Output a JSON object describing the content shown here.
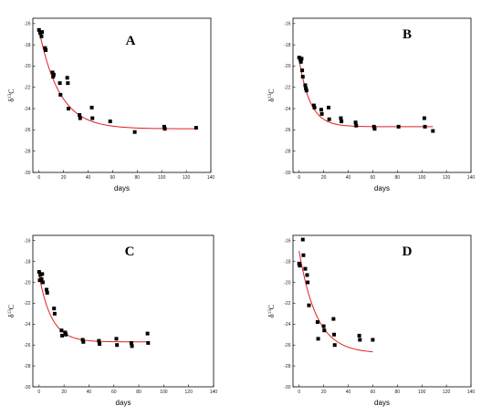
{
  "chart_data": [
    {
      "type": "scatter",
      "panel_label": "A",
      "xlabel": "days",
      "ylabel": {
        "prefix": "δ",
        "sup": "13",
        "suffix": "C"
      },
      "xlim": [
        -5,
        140
      ],
      "ylim": [
        -30,
        -15.5
      ],
      "xticks": [
        0,
        20,
        40,
        60,
        80,
        100,
        120,
        140
      ],
      "yticks": [
        -30,
        -28,
        -26,
        -24,
        -22,
        -20,
        -18,
        -16
      ],
      "points": [
        {
          "x": 0,
          "y": -16.6
        },
        {
          "x": 1,
          "y": -16.9
        },
        {
          "x": 2,
          "y": -17.2
        },
        {
          "x": 2.5,
          "y": -16.8
        },
        {
          "x": 5,
          "y": -18.3
        },
        {
          "x": 5.5,
          "y": -18.5
        },
        {
          "x": 11,
          "y": -20.6
        },
        {
          "x": 11.5,
          "y": -21.0
        },
        {
          "x": 12,
          "y": -20.8
        },
        {
          "x": 17,
          "y": -21.6
        },
        {
          "x": 17.5,
          "y": -22.7
        },
        {
          "x": 23,
          "y": -21.1
        },
        {
          "x": 23.5,
          "y": -21.6
        },
        {
          "x": 24,
          "y": -24.0
        },
        {
          "x": 33,
          "y": -24.6
        },
        {
          "x": 33.5,
          "y": -24.9
        },
        {
          "x": 43,
          "y": -23.9
        },
        {
          "x": 43.5,
          "y": -24.9
        },
        {
          "x": 58,
          "y": -25.2
        },
        {
          "x": 78,
          "y": -26.2
        },
        {
          "x": 102,
          "y": -25.7
        },
        {
          "x": 102.5,
          "y": -25.9
        },
        {
          "x": 128,
          "y": -25.8
        }
      ],
      "fit": {
        "a": -25.9,
        "b": 9.3,
        "k": 0.06,
        "x_range": [
          0,
          128
        ]
      }
    },
    {
      "type": "scatter",
      "panel_label": "B",
      "xlabel": "days",
      "ylabel": {
        "prefix": "δ",
        "sup": "13",
        "suffix": "C"
      },
      "xlim": [
        -5,
        140
      ],
      "ylim": [
        -30,
        -15.5
      ],
      "xticks": [
        0,
        20,
        40,
        60,
        80,
        100,
        120,
        140
      ],
      "yticks": [
        -30,
        -28,
        -26,
        -24,
        -22,
        -20,
        -18,
        -16
      ],
      "points": [
        {
          "x": 0,
          "y": -19.2
        },
        {
          "x": 1,
          "y": -19.4
        },
        {
          "x": 1.5,
          "y": -19.6
        },
        {
          "x": 2,
          "y": -19.3
        },
        {
          "x": 2.5,
          "y": -20.4
        },
        {
          "x": 3,
          "y": -21.0
        },
        {
          "x": 5,
          "y": -21.8
        },
        {
          "x": 5.5,
          "y": -22.1
        },
        {
          "x": 6,
          "y": -22.3
        },
        {
          "x": 12,
          "y": -23.7
        },
        {
          "x": 12.5,
          "y": -23.9
        },
        {
          "x": 18,
          "y": -24.1
        },
        {
          "x": 18.5,
          "y": -24.5
        },
        {
          "x": 24,
          "y": -23.9
        },
        {
          "x": 24.5,
          "y": -25.0
        },
        {
          "x": 34,
          "y": -24.9
        },
        {
          "x": 34.5,
          "y": -25.2
        },
        {
          "x": 46,
          "y": -25.3
        },
        {
          "x": 46.5,
          "y": -25.6
        },
        {
          "x": 61,
          "y": -25.7
        },
        {
          "x": 61.5,
          "y": -25.9
        },
        {
          "x": 81,
          "y": -25.7
        },
        {
          "x": 102,
          "y": -24.9
        },
        {
          "x": 102.5,
          "y": -25.7
        },
        {
          "x": 109,
          "y": -26.1
        }
      ],
      "fit": {
        "a": -25.7,
        "b": 6.3,
        "k": 0.11,
        "x_range": [
          0,
          109
        ]
      }
    },
    {
      "type": "scatter",
      "panel_label": "C",
      "xlabel": "days",
      "ylabel": {
        "prefix": "δ",
        "sup": "13",
        "suffix": "C"
      },
      "xlim": [
        -5,
        140
      ],
      "ylim": [
        -30,
        -15.5
      ],
      "xticks": [
        0,
        20,
        40,
        60,
        80,
        100,
        120,
        140
      ],
      "yticks": [
        -30,
        -28,
        -26,
        -24,
        -22,
        -20,
        -18,
        -16
      ],
      "points": [
        {
          "x": 0,
          "y": -19.0
        },
        {
          "x": 0.5,
          "y": -19.8
        },
        {
          "x": 1,
          "y": -19.3
        },
        {
          "x": 2,
          "y": -19.7
        },
        {
          "x": 2.5,
          "y": -19.2
        },
        {
          "x": 3,
          "y": -20.0
        },
        {
          "x": 6,
          "y": -20.7
        },
        {
          "x": 6.5,
          "y": -21.0
        },
        {
          "x": 12,
          "y": -22.5
        },
        {
          "x": 12.5,
          "y": -23.0
        },
        {
          "x": 18,
          "y": -24.6
        },
        {
          "x": 18.5,
          "y": -25.1
        },
        {
          "x": 21,
          "y": -24.8
        },
        {
          "x": 21.5,
          "y": -25.0
        },
        {
          "x": 35,
          "y": -25.5
        },
        {
          "x": 35.5,
          "y": -25.7
        },
        {
          "x": 48,
          "y": -25.6
        },
        {
          "x": 48.5,
          "y": -25.9
        },
        {
          "x": 62,
          "y": -25.4
        },
        {
          "x": 62.5,
          "y": -26.0
        },
        {
          "x": 74,
          "y": -25.8
        },
        {
          "x": 74.5,
          "y": -26.1
        },
        {
          "x": 87,
          "y": -24.9
        },
        {
          "x": 87.5,
          "y": -25.8
        }
      ],
      "fit": {
        "a": -25.7,
        "b": 6.4,
        "k": 0.1,
        "x_range": [
          0,
          87
        ]
      }
    },
    {
      "type": "scatter",
      "panel_label": "D",
      "xlabel": "days",
      "ylabel": {
        "prefix": "δ",
        "sup": "13",
        "suffix": "C"
      },
      "xlim": [
        -5,
        140
      ],
      "ylim": [
        -30,
        -15.5
      ],
      "xticks": [
        0,
        20,
        40,
        60,
        80,
        100,
        120,
        140
      ],
      "yticks": [
        -30,
        -28,
        -26,
        -24,
        -22,
        -20,
        -18,
        -16
      ],
      "points": [
        {
          "x": 0,
          "y": -18.2
        },
        {
          "x": 0.5,
          "y": -18.4
        },
        {
          "x": 3,
          "y": -15.9
        },
        {
          "x": 3.5,
          "y": -17.4
        },
        {
          "x": 5,
          "y": -18.7
        },
        {
          "x": 6.5,
          "y": -19.3
        },
        {
          "x": 7,
          "y": -20.0
        },
        {
          "x": 8,
          "y": -22.2
        },
        {
          "x": 15,
          "y": -23.8
        },
        {
          "x": 15.5,
          "y": -25.4
        },
        {
          "x": 20,
          "y": -24.2
        },
        {
          "x": 20.5,
          "y": -24.6
        },
        {
          "x": 28,
          "y": -23.5
        },
        {
          "x": 28.5,
          "y": -25.0
        },
        {
          "x": 29,
          "y": -26.0
        },
        {
          "x": 49,
          "y": -25.1
        },
        {
          "x": 49.5,
          "y": -25.5
        },
        {
          "x": 60,
          "y": -25.5
        }
      ],
      "fit": {
        "a": -26.8,
        "b": 9.8,
        "k": 0.07,
        "x_range": [
          0,
          60
        ]
      }
    }
  ]
}
